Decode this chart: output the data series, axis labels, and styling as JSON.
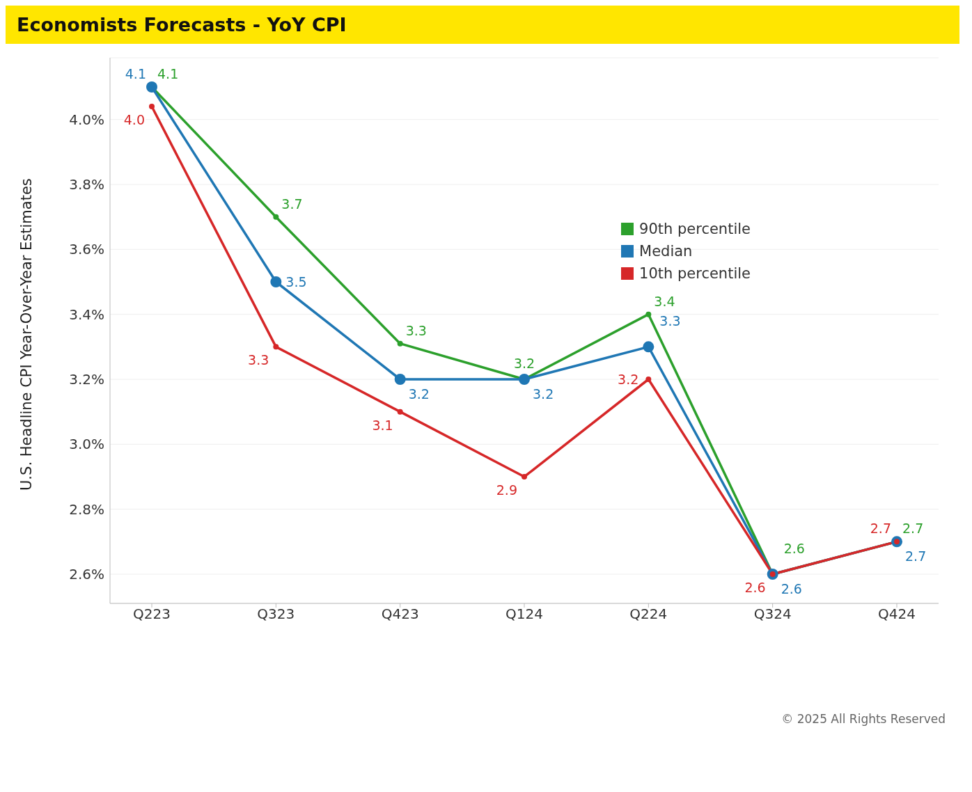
{
  "chart_data": {
    "type": "line",
    "title": "Economists Forecasts - YoY CPI",
    "ylabel": "U.S. Headline CPI Year-Over-Year Estimates",
    "categories": [
      "Q223",
      "Q323",
      "Q423",
      "Q124",
      "Q224",
      "Q324",
      "Q424"
    ],
    "series": [
      {
        "name": "90th percentile",
        "color": "#2ca02c",
        "values": [
          4.1,
          3.7,
          3.31,
          3.2,
          3.4,
          2.6,
          2.7
        ],
        "value_labels": [
          "4.1",
          "3.7",
          "3.3",
          "3.2",
          "3.4",
          "2.6",
          "2.7"
        ]
      },
      {
        "name": "Median",
        "color": "#1f77b4",
        "values": [
          4.1,
          3.5,
          3.2,
          3.2,
          3.3,
          2.6,
          2.7
        ],
        "value_labels": [
          "4.1",
          "3.5",
          "3.2",
          "3.2",
          "3.3",
          "2.6",
          "2.7"
        ]
      },
      {
        "name": "10th percentile",
        "color": "#d62728",
        "values": [
          4.04,
          3.3,
          3.1,
          2.9,
          3.2,
          2.6,
          2.7
        ],
        "value_labels": [
          "4.0",
          "3.3",
          "3.1",
          "2.9",
          "3.2",
          "2.6",
          "2.7"
        ]
      }
    ],
    "ylim": [
      2.51,
      4.19
    ],
    "yticks": [
      {
        "value": 2.6,
        "label": "2.6%"
      },
      {
        "value": 2.8,
        "label": "2.8%"
      },
      {
        "value": 3.0,
        "label": "3.0%"
      },
      {
        "value": 3.2,
        "label": "3.2%"
      },
      {
        "value": 3.4,
        "label": "3.4%"
      },
      {
        "value": 3.6,
        "label": "3.6%"
      },
      {
        "value": 3.8,
        "label": "3.8%"
      },
      {
        "value": 4.0,
        "label": "4.0%"
      }
    ],
    "grid": "y",
    "legend": "right",
    "marker": "circle",
    "line_style": "solid",
    "annotations": [
      "© 2025 All Rights Reserved"
    ]
  }
}
